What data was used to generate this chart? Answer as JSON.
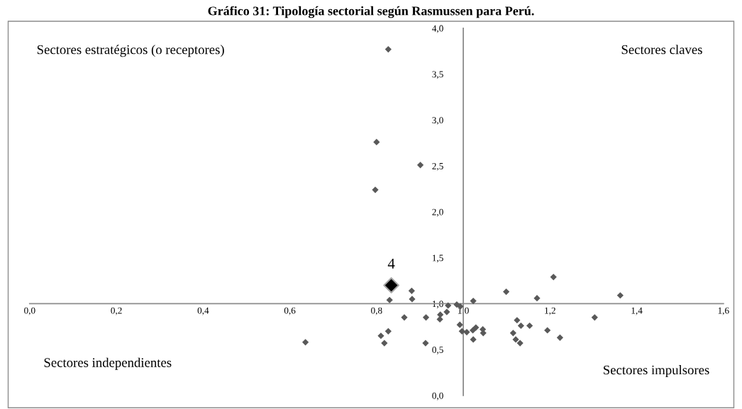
{
  "chart_data": {
    "type": "scatter",
    "title": "Gráfico 31: Tipología sectorial según Rasmussen para Perú.",
    "series": [
      {
        "color": "#595959",
        "marker": "diamond",
        "x": [
          0.827,
          0.8,
          0.901,
          0.797,
          0.881,
          0.83,
          0.882,
          0.965,
          0.985,
          0.993,
          1.023,
          1.099,
          1.17,
          1.208,
          1.303,
          1.362,
          0.864,
          0.914,
          0.947,
          0.946,
          0.962,
          0.992,
          0.997,
          1.008,
          1.022,
          1.029,
          1.045,
          1.046,
          1.023,
          0.827,
          0.81,
          0.818,
          0.913,
          0.636,
          1.115,
          1.124,
          1.133,
          1.153,
          1.121,
          1.131,
          1.194,
          1.223
        ],
        "values": [
          3.77,
          2.76,
          2.51,
          2.24,
          1.14,
          1.04,
          1.05,
          0.98,
          0.99,
          0.97,
          1.03,
          1.13,
          1.06,
          1.29,
          0.85,
          1.09,
          0.85,
          0.85,
          0.88,
          0.83,
          0.91,
          0.77,
          0.7,
          0.69,
          0.71,
          0.74,
          0.72,
          0.68,
          0.61,
          0.7,
          0.65,
          0.57,
          0.57,
          0.58,
          0.68,
          0.82,
          0.76,
          0.76,
          0.61,
          0.57,
          0.71,
          0.63
        ]
      },
      {
        "color": "#000000",
        "marker": "diamond",
        "x": [
          0.834
        ],
        "values": [
          1.2
        ]
      }
    ],
    "xlim": [
      0,
      1.6
    ],
    "xticks": [
      {
        "value": 0.0,
        "label": "0,0"
      },
      {
        "value": 0.2,
        "label": "0,2"
      },
      {
        "value": 0.4,
        "label": "0,4"
      },
      {
        "value": 0.6,
        "label": "0,6"
      },
      {
        "value": 0.8,
        "label": "0,8"
      },
      {
        "value": 1.0,
        "label": "1,0"
      },
      {
        "value": 1.2,
        "label": "1,2"
      },
      {
        "value": 1.4,
        "label": "1,4"
      },
      {
        "value": 1.6,
        "label": "1,6"
      }
    ],
    "ylim": [
      0,
      4
    ],
    "yticks": [
      {
        "value": 0.0,
        "label": "0,0"
      },
      {
        "value": 0.5,
        "label": "0,5"
      },
      {
        "value": 1.0,
        "label": "1,0"
      },
      {
        "value": 1.5,
        "label": "1,5"
      },
      {
        "value": 2.0,
        "label": "2,0"
      },
      {
        "value": 2.5,
        "label": "2,5"
      },
      {
        "value": 3.0,
        "label": "3,0"
      },
      {
        "value": 3.5,
        "label": "3,5"
      },
      {
        "value": 4.0,
        "label": "4,0"
      }
    ],
    "annotations": [
      "Sectores estratégicos (o receptores)",
      "Sectores claves",
      "Sectores independientes",
      "Sectores impulsores",
      {
        "text": "4",
        "x": 0.834,
        "y": 1.2
      }
    ],
    "grid": false,
    "legend": false
  }
}
